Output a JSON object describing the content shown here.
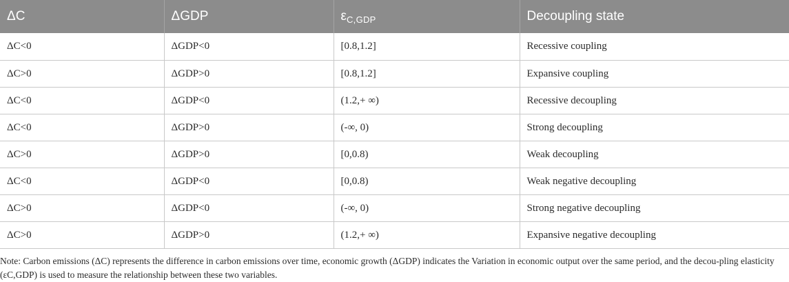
{
  "table": {
    "headers": [
      "ΔC",
      "ΔGDP",
      "ε",
      "Decoupling state"
    ],
    "elasticity_subscript": "C,GDP",
    "rows": [
      [
        "ΔC<0",
        "ΔGDP<0",
        "[0.8,1.2]",
        "Recessive coupling"
      ],
      [
        "ΔC>0",
        "ΔGDP>0",
        "[0.8,1.2]",
        "Expansive coupling"
      ],
      [
        "ΔC<0",
        "ΔGDP<0",
        "(1.2,+ ∞)",
        "Recessive decoupling"
      ],
      [
        "ΔC<0",
        "ΔGDP>0",
        "(-∞, 0)",
        "Strong decoupling"
      ],
      [
        "ΔC>0",
        "ΔGDP>0",
        "[0,0.8)",
        "Weak decoupling"
      ],
      [
        "ΔC<0",
        "ΔGDP<0",
        "[0,0.8)",
        "Weak negative decoupling"
      ],
      [
        "ΔC>0",
        "ΔGDP<0",
        "(-∞, 0)",
        "Strong negative decoupling"
      ],
      [
        "ΔC>0",
        "ΔGDP>0",
        "(1.2,+ ∞)",
        "Expansive negative decoupling"
      ]
    ]
  },
  "note": "Note: Carbon emissions (ΔC) represents the difference in carbon emissions over time, economic growth (ΔGDP) indicates the Variation in economic output over the same period, and the decou-pling elasticity (εC,GDP) is used to measure the relationship between these two variables."
}
